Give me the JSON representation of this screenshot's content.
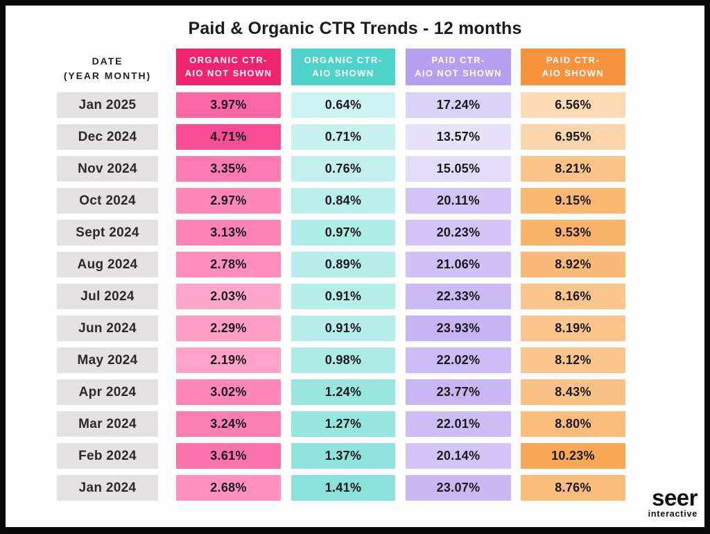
{
  "title": "Paid & Organic CTR Trends - 12 months",
  "date_column": {
    "header": "DATE\n(YEAR MONTH)"
  },
  "columns": [
    {
      "key": "organic-ctr-aio-not-shown",
      "header": "ORGANIC CTR-\nAIO NOT SHOWN",
      "header_bg": "#F0246C",
      "heat_light": "#FFA7CA",
      "heat_dark": "#F94E95"
    },
    {
      "key": "organic-ctr-aio-shown",
      "header": "ORGANIC CTR-\nAIO SHOWN",
      "header_bg": "#4FD3C9",
      "heat_light": "#CCF3EF",
      "heat_dark": "#8BE2DB"
    },
    {
      "key": "paid-ctr-aio-not-shown",
      "header": "PAID CTR-\nAIO NOT SHOWN",
      "header_bg": "#B5A0EF",
      "heat_light": "#E7E2FA",
      "heat_dark": "#C6B4F4"
    },
    {
      "key": "paid-ctr-aio-shown",
      "header": "PAID CTR-\nAIO SHOWN",
      "header_bg": "#F7933C",
      "heat_light": "#FCDBB4",
      "heat_dark": "#F8A855"
    }
  ],
  "logo": {
    "name": "seer",
    "sub": "interactive"
  },
  "colors": {
    "frame": "#0A0A0A",
    "background": "#FEFEFE",
    "date_cell_bg": "#E3E1E2",
    "title_text": "#1B1B1D",
    "value_text": "#19191B"
  },
  "chart_data": {
    "type": "table",
    "title": "Paid & Organic CTR Trends - 12 months",
    "unit": "%",
    "row_label_header": "DATE (YEAR MONTH)",
    "categories": [
      "Jan 2025",
      "Dec 2024",
      "Nov 2024",
      "Oct 2024",
      "Sept 2024",
      "Aug 2024",
      "Jul 2024",
      "Jun 2024",
      "May 2024",
      "Apr 2024",
      "Mar 2024",
      "Feb 2024",
      "Jan 2024"
    ],
    "series": [
      {
        "name": "Organic CTR- AIO Not Shown",
        "values": [
          3.97,
          4.71,
          3.35,
          2.97,
          3.13,
          2.78,
          2.03,
          2.29,
          2.19,
          3.02,
          3.24,
          3.61,
          2.68
        ]
      },
      {
        "name": "Organic CTR- AIO Shown",
        "values": [
          0.64,
          0.71,
          0.76,
          0.84,
          0.97,
          0.89,
          0.91,
          0.91,
          0.98,
          1.24,
          1.27,
          1.37,
          1.41
        ]
      },
      {
        "name": "Paid CTR- AIO Not Shown",
        "values": [
          17.24,
          13.57,
          15.05,
          20.11,
          20.23,
          21.06,
          22.33,
          23.93,
          22.02,
          23.77,
          22.01,
          20.14,
          23.07
        ]
      },
      {
        "name": "Paid CTR- AIO Shown",
        "values": [
          6.56,
          6.95,
          8.21,
          9.15,
          9.53,
          8.92,
          8.16,
          8.19,
          8.12,
          8.43,
          8.8,
          10.23,
          8.76
        ]
      }
    ],
    "heatmap": true,
    "legend_position": "top-as-column-headers",
    "grid": false
  }
}
